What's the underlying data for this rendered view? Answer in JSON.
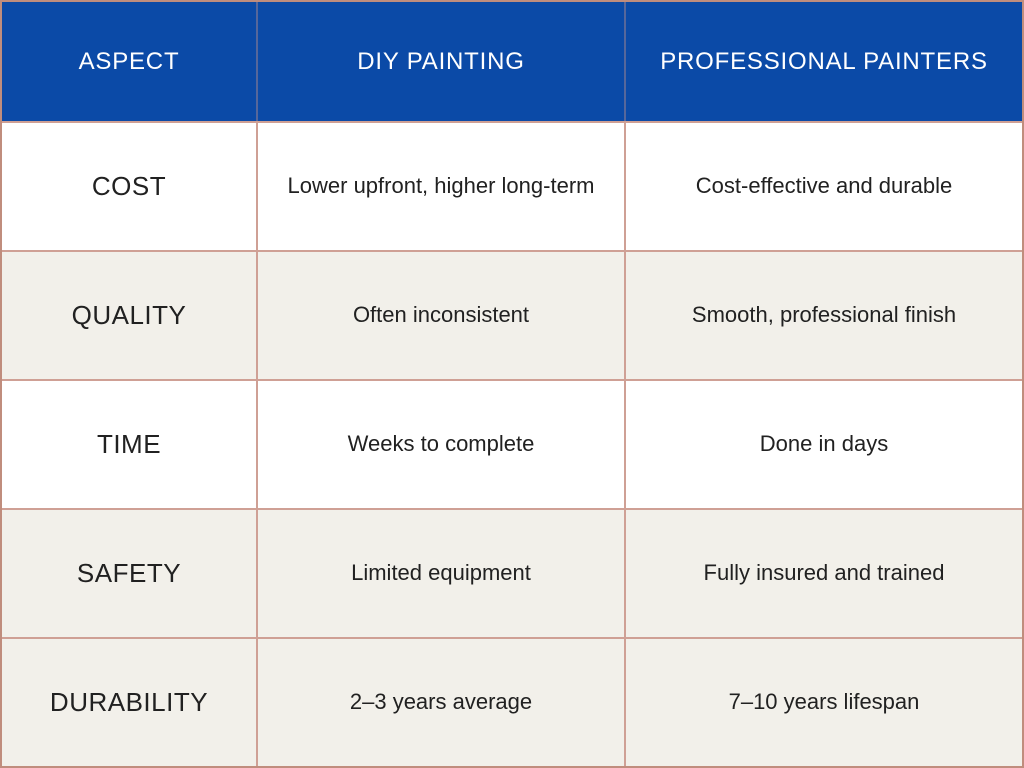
{
  "chart_data": {
    "type": "table",
    "title": "",
    "columns": [
      "ASPECT",
      "DIY PAINTING",
      "PROFESSIONAL PAINTERS"
    ],
    "rows": [
      {
        "aspect": "COST",
        "diy": "Lower upfront, higher long-term",
        "professional": "Cost-effective and durable",
        "shaded": false
      },
      {
        "aspect": "QUALITY",
        "diy": "Often inconsistent",
        "professional": "Smooth, professional finish",
        "shaded": true
      },
      {
        "aspect": "TIME",
        "diy": "Weeks to complete",
        "professional": "Done in days",
        "shaded": false
      },
      {
        "aspect": "SAFETY",
        "diy": "Limited equipment",
        "professional": "Fully insured and trained",
        "shaded": true
      },
      {
        "aspect": "DURABILITY",
        "diy": "2–3 years average",
        "professional": "7–10 years lifespan",
        "shaded": true
      }
    ]
  },
  "colors": {
    "header_bg": "#0B4AA7",
    "header_text": "#FFFFFF",
    "header_divider": "#56679B",
    "row_white": "#FFFFFF",
    "row_cream": "#F2F0EA",
    "border_outer": "#C08D7D",
    "border_inner": "#CFA095",
    "body_text": "#212121"
  }
}
